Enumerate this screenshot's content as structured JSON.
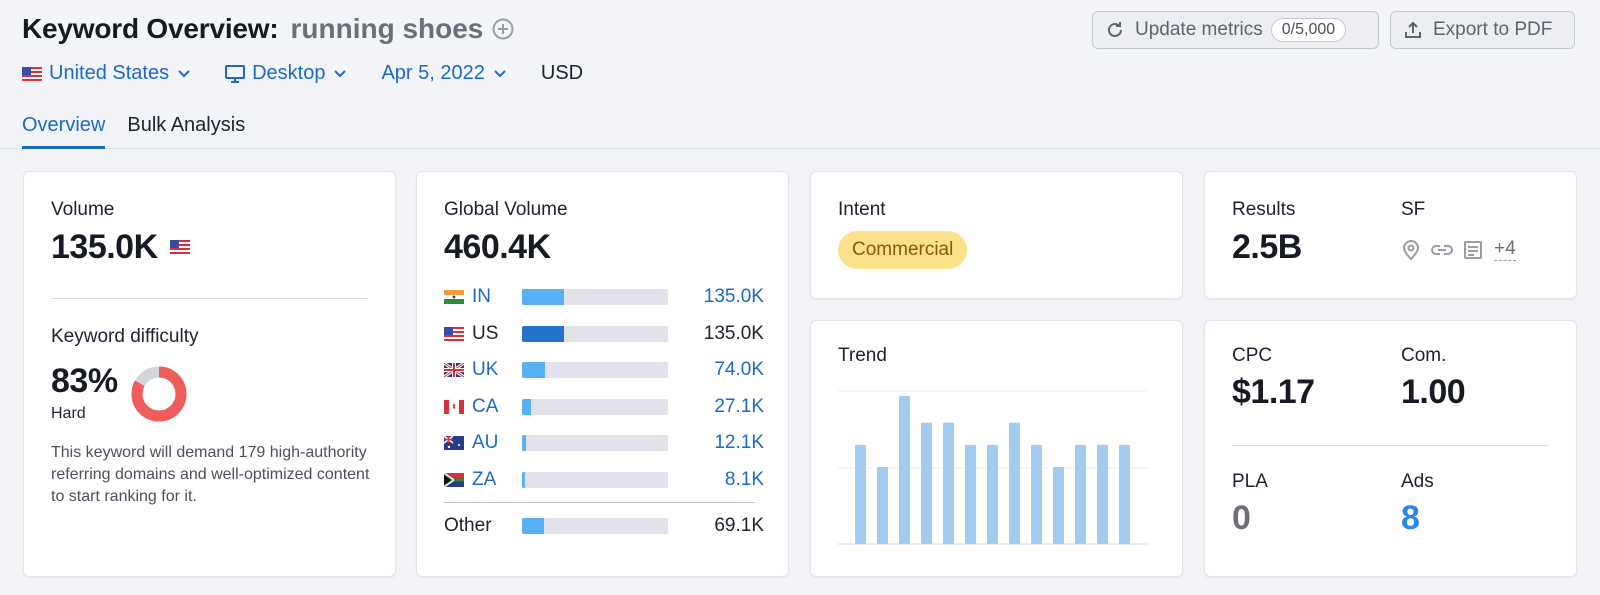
{
  "header": {
    "title": "Keyword Overview:",
    "keyword": "running shoes",
    "update_label": "Update metrics",
    "update_count": "0/5,000",
    "export_label": "Export to PDF"
  },
  "filters": {
    "country": "United States",
    "device": "Desktop",
    "date": "Apr 5, 2022",
    "currency": "USD"
  },
  "tabs": [
    {
      "label": "Overview",
      "active": true
    },
    {
      "label": "Bulk Analysis",
      "active": false
    }
  ],
  "volume": {
    "label": "Volume",
    "value": "135.0K"
  },
  "keyword_difficulty": {
    "label": "Keyword difficulty",
    "value": "83%",
    "level": "Hard",
    "percent": 83,
    "description": "This keyword will demand 179 high-authority referring domains and well-optimized content to start ranking for it."
  },
  "global_volume": {
    "label": "Global Volume",
    "value": "460.4K",
    "countries": [
      {
        "code": "IN",
        "value": "135.0K",
        "share": 0.29
      },
      {
        "code": "US",
        "value": "135.0K",
        "share": 0.29
      },
      {
        "code": "UK",
        "value": "74.0K",
        "share": 0.16
      },
      {
        "code": "CA",
        "value": "27.1K",
        "share": 0.06
      },
      {
        "code": "AU",
        "value": "12.1K",
        "share": 0.03
      },
      {
        "code": "ZA",
        "value": "8.1K",
        "share": 0.02
      }
    ],
    "other": {
      "label": "Other",
      "value": "69.1K",
      "share": 0.15
    }
  },
  "intent": {
    "label": "Intent",
    "value": "Commercial"
  },
  "trend": {
    "label": "Trend",
    "values": [
      0.67,
      0.52,
      1.0,
      0.82,
      0.82,
      0.67,
      0.67,
      0.82,
      0.67,
      0.52,
      0.67,
      0.67,
      0.67
    ]
  },
  "results": {
    "label": "Results",
    "value": "2.5B",
    "sf_label": "SF",
    "sf_icons": [
      "location-pin-icon",
      "link-icon",
      "article-icon"
    ],
    "sf_more": "+4"
  },
  "cpc": {
    "label": "CPC",
    "value": "$1.17"
  },
  "com": {
    "label": "Com.",
    "value": "1.00"
  },
  "pla": {
    "label": "PLA",
    "value": "0"
  },
  "ads": {
    "label": "Ads",
    "value": "8"
  },
  "colors": {
    "link": "#1b6ac9",
    "bar_light": "#58b0f5",
    "bar_dark": "#2472cc",
    "kd_red": "#ef5c5c",
    "intent_bg": "#fbe28a",
    "trend_bar": "#a3cbef"
  }
}
